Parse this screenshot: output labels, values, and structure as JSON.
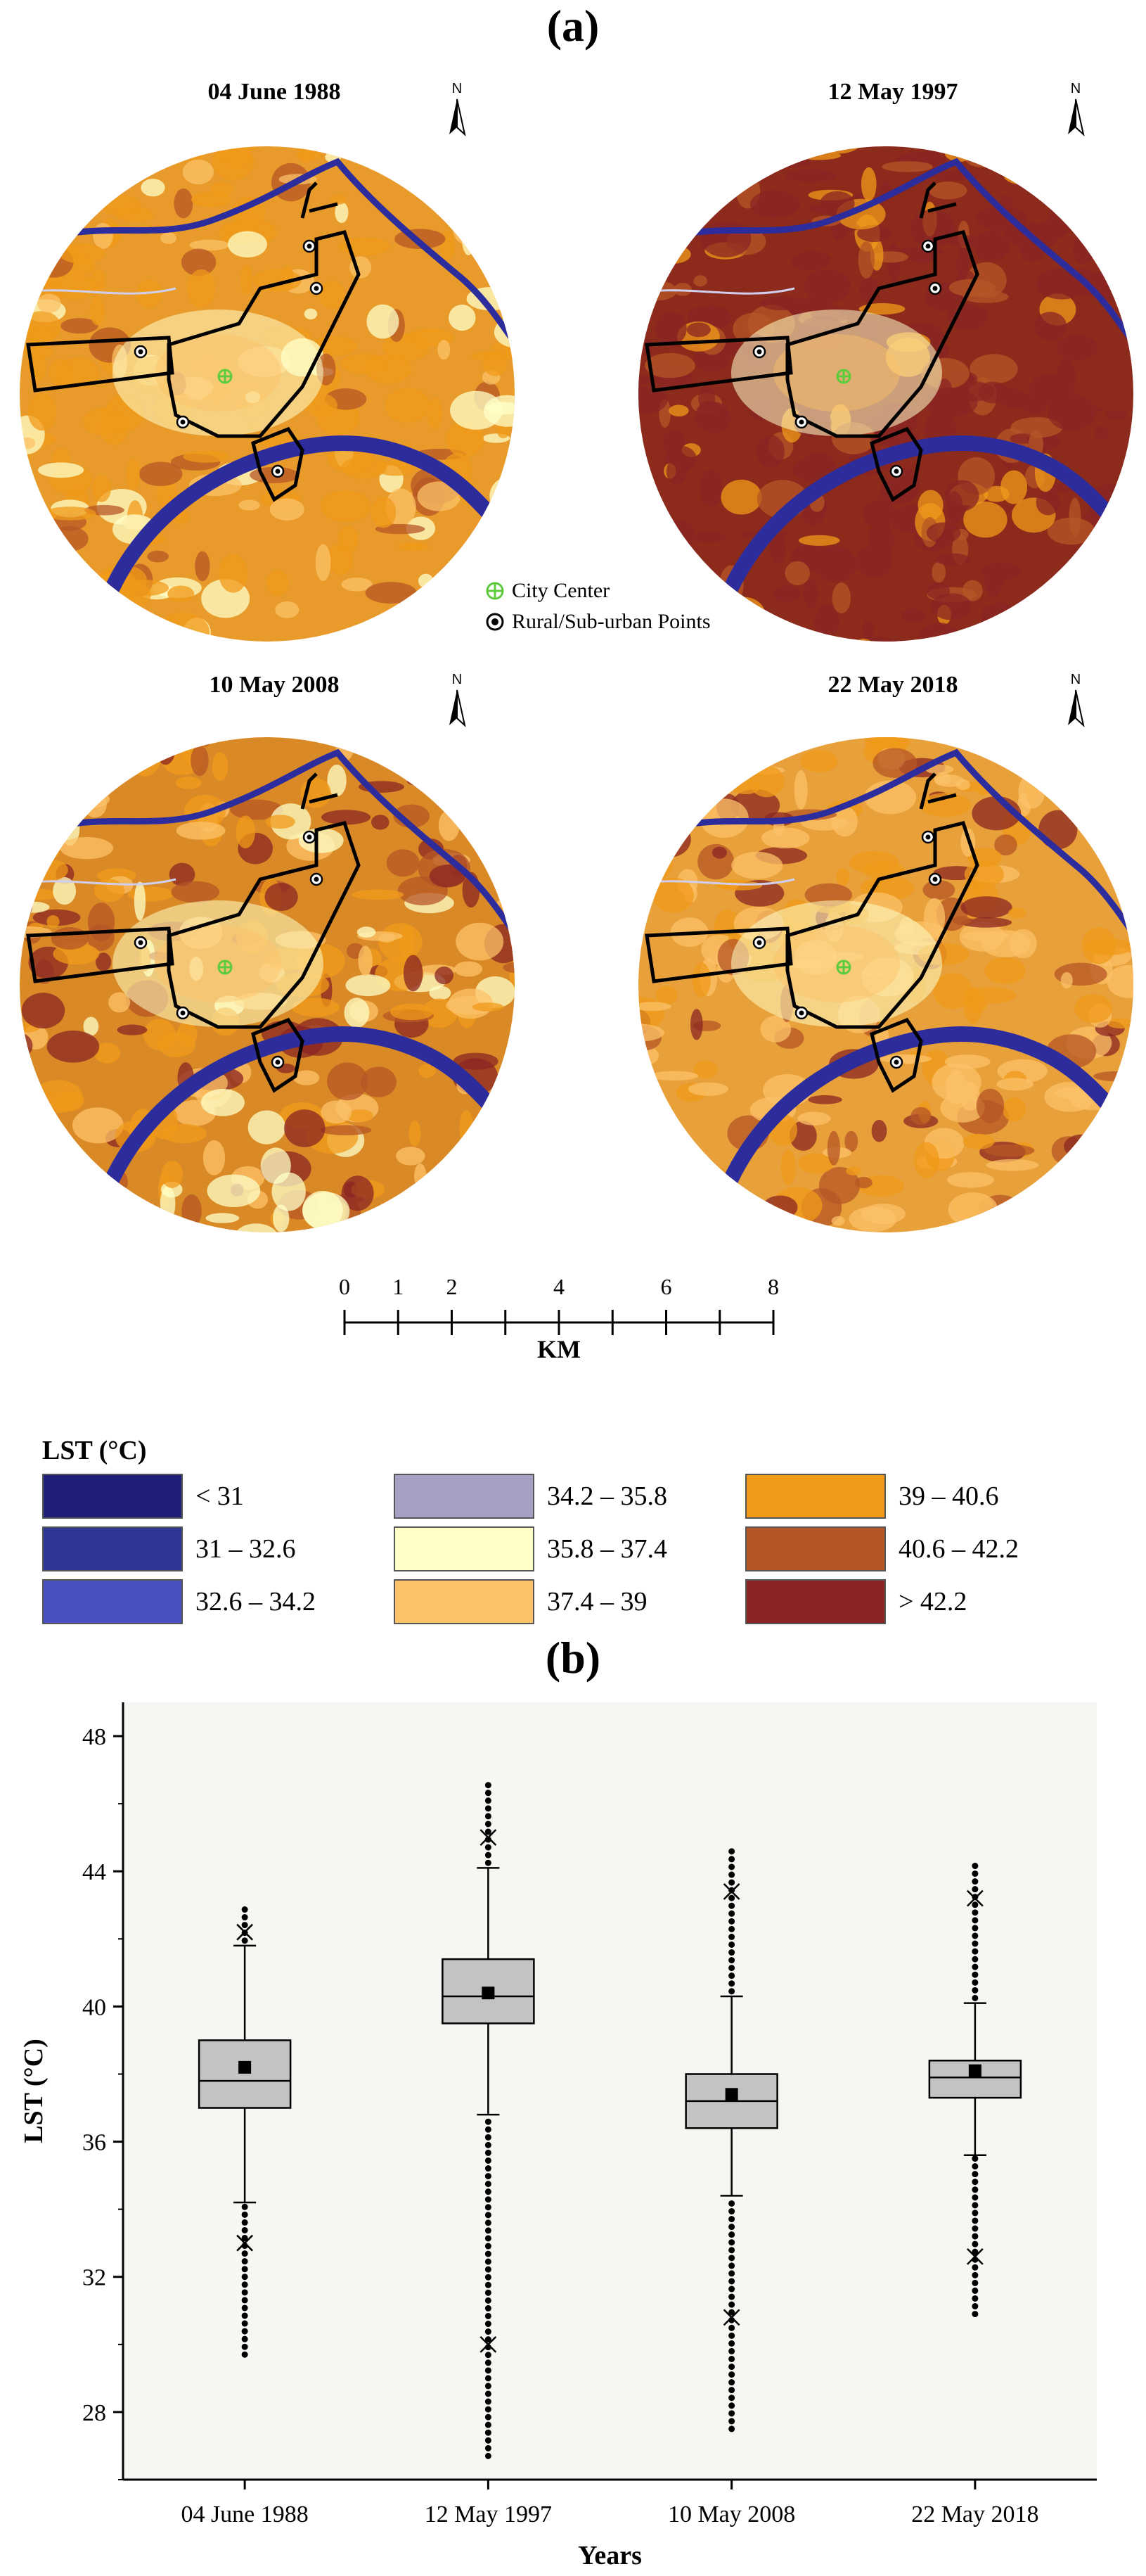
{
  "panels": {
    "a_label": "(a)",
    "b_label": "(b)"
  },
  "maps": [
    {
      "title": "04 June 1988",
      "base": "#e89a2a",
      "north": "N"
    },
    {
      "title": "12 May 1997",
      "base": "#8c2a1c",
      "north": "N"
    },
    {
      "title": "10 May 2008",
      "base": "#d98a26",
      "north": "N"
    },
    {
      "title": "22 May 2018",
      "base": "#e8a03a",
      "north": "N"
    }
  ],
  "map_legend": {
    "city_center": "City Center",
    "rural_points": "Rural/Sub-urban Points"
  },
  "scalebar": {
    "ticks": [
      "0",
      "1",
      "2",
      "4",
      "6",
      "8"
    ],
    "unit": "KM"
  },
  "lst_legend": {
    "title": "LST (°C)",
    "classes": [
      {
        "label": "< 31",
        "color": "#1f1f7a"
      },
      {
        "label": "31 – 32.6",
        "color": "#2e3592"
      },
      {
        "label": "32.6 – 34.2",
        "color": "#4a50c0"
      },
      {
        "label": "34.2 – 35.8",
        "color": "#a59fc4"
      },
      {
        "label": "35.8 – 37.4",
        "color": "#ffffc8"
      },
      {
        "label": "37.4 – 39",
        "color": "#fcc268"
      },
      {
        "label": "39 – 40.6",
        "color": "#f09a1a"
      },
      {
        "label": "40.6 – 42.2",
        "color": "#b65626"
      },
      {
        "label": "> 42.2",
        "color": "#892623"
      }
    ]
  },
  "chart_data": {
    "type": "box",
    "xlabel": "Years",
    "ylabel": "LST (°C)",
    "ylim": [
      26,
      49
    ],
    "yticks": [
      28,
      32,
      36,
      40,
      44,
      48
    ],
    "categories": [
      "04 June 1988",
      "12 May 1997",
      "10 May 2008",
      "22 May 2018"
    ],
    "boxes": [
      {
        "whisker_low": 34.2,
        "q1": 37.0,
        "median": 37.8,
        "q3": 39.0,
        "whisker_high": 41.8,
        "mean": 38.2,
        "min": 29.7,
        "max": 42.9,
        "p1": 33.0,
        "p99": 42.2,
        "outlier_low": 29.7,
        "outlier_high": 42.9
      },
      {
        "whisker_low": 36.8,
        "q1": 39.5,
        "median": 40.3,
        "q3": 41.4,
        "whisker_high": 44.1,
        "mean": 40.4,
        "min": 26.7,
        "max": 46.7,
        "p1": 30.0,
        "p99": 45.0,
        "outlier_low": 26.7,
        "outlier_high": 46.7
      },
      {
        "whisker_low": 34.4,
        "q1": 36.4,
        "median": 37.2,
        "q3": 38.0,
        "whisker_high": 40.3,
        "mean": 37.4,
        "min": 27.5,
        "max": 44.8,
        "p1": 30.8,
        "p99": 43.4,
        "outlier_low": 27.5,
        "outlier_high": 44.8
      },
      {
        "whisker_low": 35.6,
        "q1": 37.3,
        "median": 37.9,
        "q3": 38.4,
        "whisker_high": 40.1,
        "mean": 38.1,
        "min": 30.9,
        "max": 44.2,
        "p1": 32.6,
        "p99": 43.2,
        "outlier_low": 30.9,
        "outlier_high": 44.2
      }
    ]
  }
}
